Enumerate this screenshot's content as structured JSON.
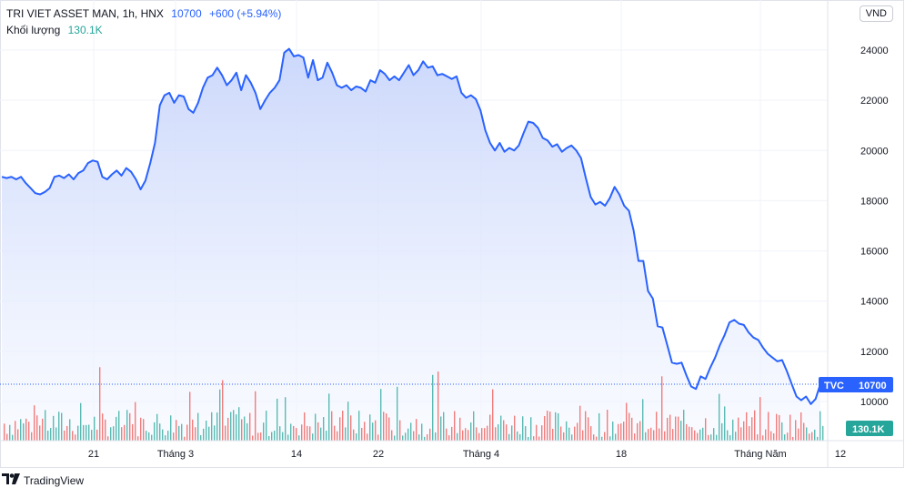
{
  "header": {
    "symbol": "TRI VIET ASSET MAN, 1h, HNX",
    "last": "10700",
    "change": "+600 (+5.94%)",
    "volume_label": "Khối lượng",
    "volume_value": "130.1K",
    "currency": "VND"
  },
  "tags": {
    "tvc_label": "TVC",
    "tvc_value": "10700",
    "volume_value": "130.1K"
  },
  "footer": {
    "brand": "TradingView"
  },
  "colors": {
    "line": "#2962ff",
    "area_top": "#c9d6fb",
    "area_bottom": "#f5f8ff",
    "vol_up": "#26a69a",
    "vol_down": "#ef5350",
    "grid": "#f0f3fa"
  },
  "chart_data": {
    "type": "area",
    "y_ticks": [
      "24000",
      "22000",
      "20000",
      "18000",
      "16000",
      "14000",
      "12000",
      "10000"
    ],
    "x_ticks": [
      "21",
      "Tháng 3",
      "14",
      "22",
      "Tháng 4",
      "18",
      "Tháng Năm",
      "12"
    ],
    "ylim": [
      9000,
      25000
    ],
    "grid": true,
    "price_series": [
      18950,
      18900,
      18950,
      18850,
      18950,
      18700,
      18500,
      18300,
      18250,
      18350,
      18500,
      18950,
      19000,
      18900,
      19050,
      18850,
      19100,
      19200,
      19500,
      19600,
      19550,
      18950,
      18850,
      19050,
      19200,
      19000,
      19300,
      19150,
      18850,
      18450,
      18800,
      19500,
      20300,
      21800,
      22200,
      22300,
      21900,
      22200,
      22150,
      21650,
      21500,
      21900,
      22500,
      22900,
      23000,
      23300,
      23000,
      22600,
      22800,
      23100,
      22400,
      23000,
      22700,
      22300,
      21650,
      22000,
      22300,
      22500,
      22800,
      23900,
      24050,
      23750,
      23800,
      23700,
      22900,
      23600,
      22800,
      22900,
      23500,
      23100,
      22600,
      22500,
      22600,
      22400,
      22550,
      22500,
      22350,
      22800,
      22700,
      23200,
      23050,
      22800,
      22950,
      22800,
      23100,
      23400,
      23000,
      23200,
      23550,
      23300,
      23350,
      23000,
      23050,
      22950,
      22850,
      22950,
      22300,
      22100,
      22200,
      22050,
      21600,
      20800,
      20300,
      20000,
      20300,
      19950,
      20100,
      20000,
      20200,
      20700,
      21150,
      21100,
      20900,
      20500,
      20400,
      20150,
      20250,
      19950,
      20100,
      20200,
      20000,
      19700,
      18900,
      18150,
      17850,
      17950,
      17800,
      18100,
      18550,
      18250,
      17800,
      17600,
      16800,
      15600,
      15600,
      14400,
      14100,
      13000,
      12950,
      12250,
      11550,
      11500,
      11550,
      11050,
      10600,
      10500,
      11000,
      10900,
      11350,
      11750,
      12250,
      12650,
      13150,
      13250,
      13100,
      13050,
      12750,
      12550,
      12450,
      12150,
      11900,
      11750,
      11600,
      11650,
      11200,
      10700,
      10200,
      10050,
      10200,
      9900,
      10100,
      10700
    ]
  }
}
